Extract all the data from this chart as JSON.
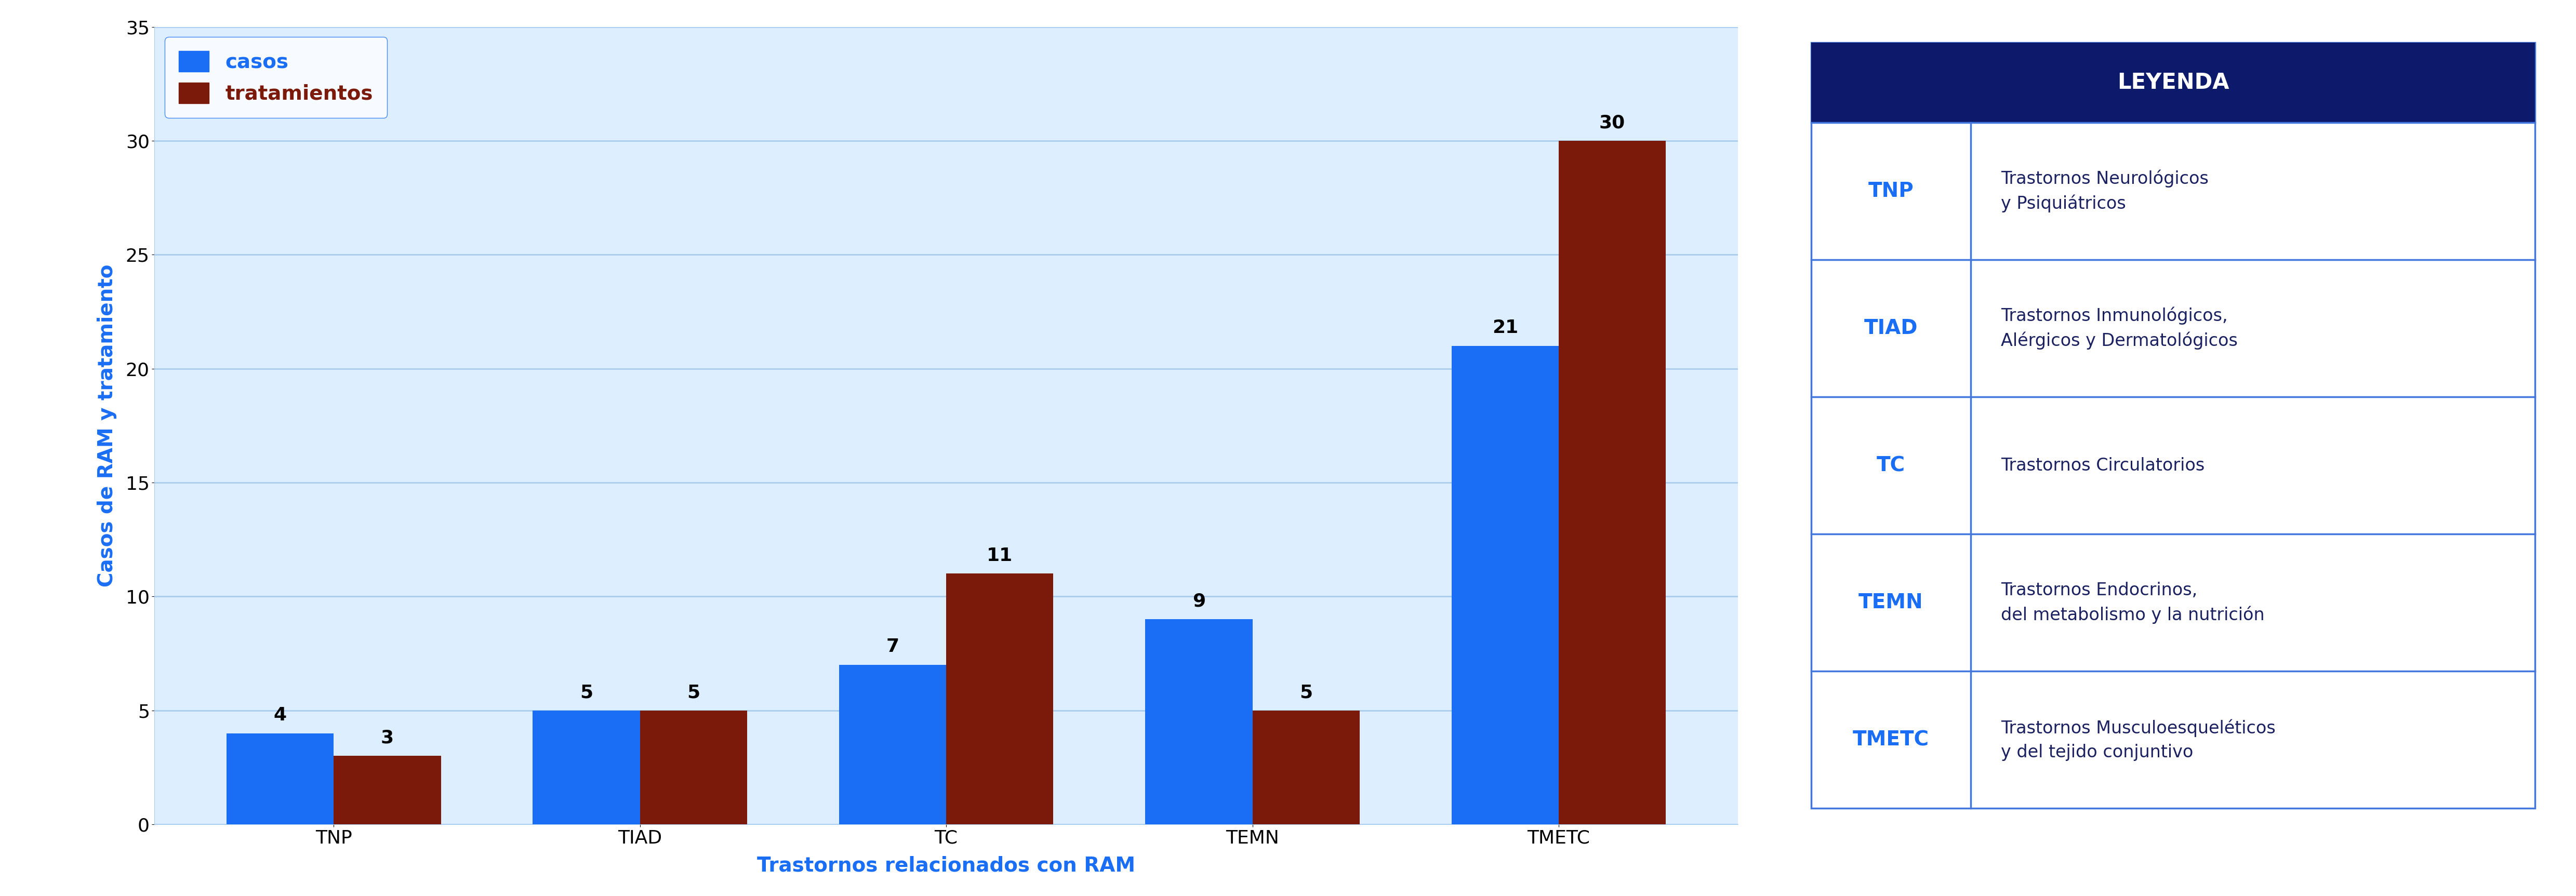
{
  "categories": [
    "TNP",
    "TIAD",
    "TC",
    "TEMN",
    "TMETC"
  ],
  "casos": [
    4,
    5,
    7,
    9,
    21
  ],
  "tratamientos": [
    3,
    5,
    11,
    5,
    30
  ],
  "bar_color_casos": "#1a6ef5",
  "bar_color_tratamientos": "#7b1a0a",
  "ylabel": "Casos de RAM y tratamiento",
  "xlabel": "Trastornos relacionados con RAM",
  "ylim": [
    0,
    35
  ],
  "yticks": [
    0,
    5,
    10,
    15,
    20,
    25,
    30,
    35
  ],
  "legend_casos": "casos",
  "legend_tratamientos": "tratamientos",
  "bg_chart": "#dceeff",
  "bg_figure": "#ffffff",
  "grid_color": "#aaccee",
  "axis_color": "#1a6ef5",
  "table_header_bg": "#0d1a6b",
  "table_header_text": "#ffffff",
  "table_border_color": "#4477dd",
  "table_abbr_color": "#1a6ef5",
  "table_text_color": "#1a2060",
  "table_header": "LEYENDA",
  "table_rows": [
    [
      "TNP",
      "Trastornos Neurológicos\ny Psiquiátricos"
    ],
    [
      "TIAD",
      "Trastornos Inmunológicos,\nAlérgicos y Dermatológicos"
    ],
    [
      "TC",
      "Trastornos Circulatorios"
    ],
    [
      "TEMN",
      "Trastornos Endocrinos,\ndel metabolismo y la nutrición"
    ],
    [
      "TMETC",
      "Trastornos Musculoesqueléticos\ny del tejido conjuntivo"
    ]
  ],
  "bar_width": 0.35,
  "tick_fontsize": 26,
  "annot_fontsize": 26,
  "legend_fontsize": 28,
  "ylabel_fontsize": 28,
  "xlabel_fontsize": 28,
  "table_header_fontsize": 30,
  "table_abbr_fontsize": 28,
  "table_text_fontsize": 24
}
